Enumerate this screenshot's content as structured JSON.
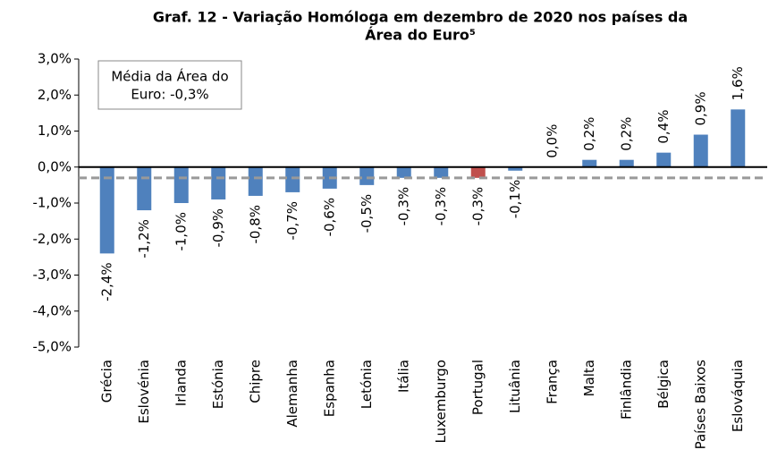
{
  "chart_data": {
    "type": "bar",
    "title": [
      "Graf. 12 - Variação Homóloga em dezembro de 2020 nos países da",
      "Área do Euro⁵"
    ],
    "categories": [
      "Grécia",
      "Eslovénia",
      "Irlanda",
      "Estónia",
      "Chipre",
      "Alemanha",
      "Espanha",
      "Letónia",
      "Itália",
      "Luxemburgo",
      "Portugal",
      "Lituânia",
      "França",
      "Malta",
      "Finlândia",
      "Bélgica",
      "Países Baixos",
      "Eslováquia"
    ],
    "values": [
      -2.4,
      -1.2,
      -1.0,
      -0.9,
      -0.8,
      -0.7,
      -0.6,
      -0.5,
      -0.3,
      -0.3,
      -0.3,
      -0.1,
      0.0,
      0.2,
      0.2,
      0.4,
      0.9,
      1.6
    ],
    "value_labels": [
      "-2,4%",
      "-1,2%",
      "-1,0%",
      "-0,9%",
      "-0,8%",
      "-0,7%",
      "-0,6%",
      "-0,5%",
      "-0,3%",
      "-0,3%",
      "-0,3%",
      "-0,1%",
      "0,0%",
      "0,2%",
      "0,2%",
      "0,4%",
      "0,9%",
      "1,6%"
    ],
    "colors": [
      "#4f81bd",
      "#4f81bd",
      "#4f81bd",
      "#4f81bd",
      "#4f81bd",
      "#4f81bd",
      "#4f81bd",
      "#4f81bd",
      "#4f81bd",
      "#4f81bd",
      "#c0504d",
      "#4f81bd",
      "#4f81bd",
      "#4f81bd",
      "#4f81bd",
      "#4f81bd",
      "#4f81bd",
      "#4f81bd"
    ],
    "ylim": [
      -5,
      3
    ],
    "yticks": [
      {
        "value": -5,
        "label": "-5,0%"
      },
      {
        "value": -4,
        "label": "-4,0%"
      },
      {
        "value": -3,
        "label": "-3,0%"
      },
      {
        "value": -2,
        "label": "-2,0%"
      },
      {
        "value": -1,
        "label": "-1,0%"
      },
      {
        "value": 0,
        "label": "0,0%"
      },
      {
        "value": 1,
        "label": "1,0%"
      },
      {
        "value": 2,
        "label": "2,0%"
      },
      {
        "value": 3,
        "label": "3,0%"
      }
    ],
    "average": -0.3,
    "annotation": [
      "Média da Área do",
      "Euro: -0,3%"
    ]
  }
}
